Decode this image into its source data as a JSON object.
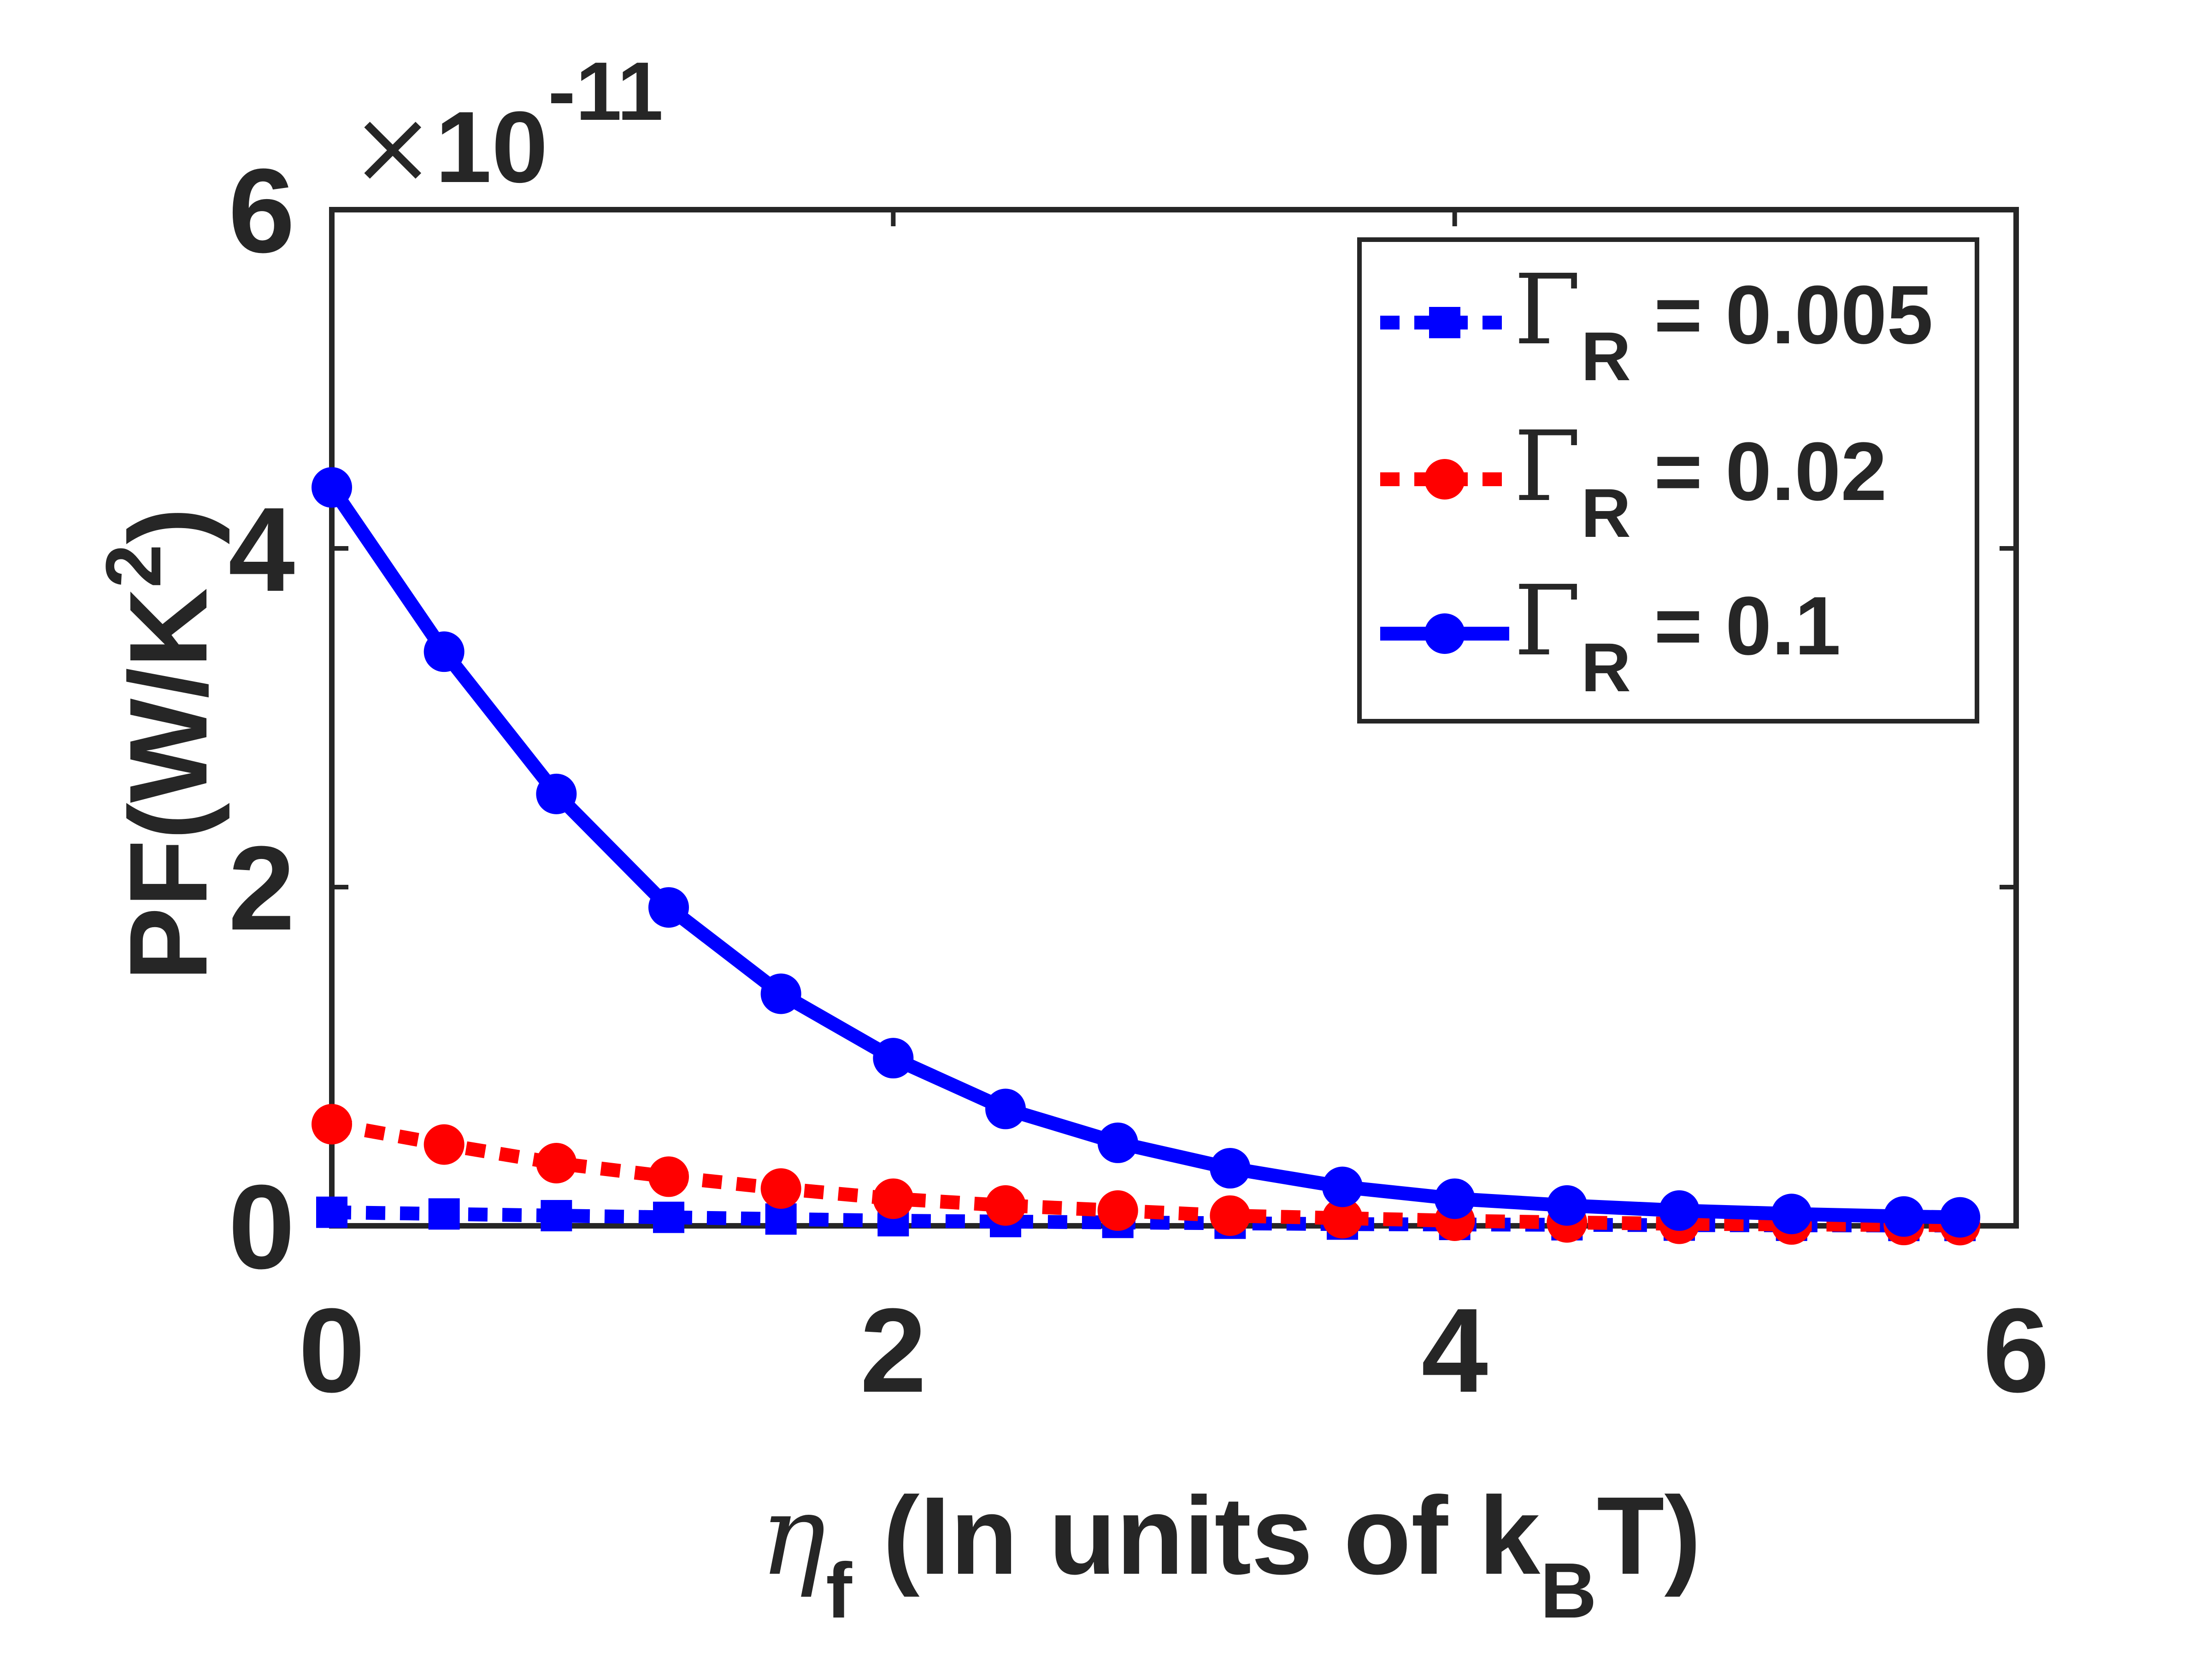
{
  "chart_data": {
    "type": "line",
    "xlabel": {
      "symbol": "η",
      "subscript": "f",
      "text": " (In units of k",
      "text_sub": "B",
      "text_end": "T)"
    },
    "ylabel": {
      "text": "PF(W/K",
      "superscript": "2",
      "text_end": ")"
    },
    "y_exponent": {
      "times": "×",
      "base": "10",
      "power": "-11"
    },
    "xlim": [
      0,
      6
    ],
    "ylim": [
      0,
      6
    ],
    "x_ticks": [
      0,
      2,
      4,
      6
    ],
    "x_tick_labels": [
      "0",
      "2",
      "4",
      "6"
    ],
    "y_ticks": [
      0,
      2,
      4,
      6
    ],
    "y_tick_labels": [
      "0",
      "2",
      "4",
      "6"
    ],
    "grid": false,
    "legend_position": "top-right",
    "x": [
      0,
      0.4,
      0.8,
      1.2,
      1.6,
      2.0,
      2.4,
      2.8,
      3.2,
      3.6,
      4.0,
      4.4,
      4.8,
      5.2,
      5.6,
      5.8
    ],
    "series": [
      {
        "symbol": "Γ",
        "subscript": "R",
        "label_rest": " = 0.005",
        "color": "#0000ff",
        "line_style": "dotted",
        "marker": "square",
        "values": [
          0.08,
          0.07,
          0.06,
          0.05,
          0.04,
          0.03,
          0.025,
          0.02,
          0.015,
          0.01,
          0.008,
          0.006,
          0.004,
          0.003,
          0.002,
          0.002
        ]
      },
      {
        "symbol": "Γ",
        "subscript": "R",
        "label_rest": " = 0.02",
        "color": "#ff0000",
        "line_style": "dotted",
        "marker": "circle",
        "values": [
          0.6,
          0.48,
          0.37,
          0.29,
          0.22,
          0.16,
          0.12,
          0.09,
          0.06,
          0.045,
          0.03,
          0.02,
          0.012,
          0.008,
          0.005,
          0.004
        ]
      },
      {
        "symbol": "Γ",
        "subscript": "R",
        "label_rest": " = 0.1",
        "color": "#0000ff",
        "line_style": "solid",
        "marker": "circle",
        "values": [
          4.36,
          3.39,
          2.55,
          1.88,
          1.37,
          0.99,
          0.69,
          0.49,
          0.34,
          0.23,
          0.16,
          0.12,
          0.09,
          0.07,
          0.055,
          0.05
        ]
      }
    ]
  }
}
